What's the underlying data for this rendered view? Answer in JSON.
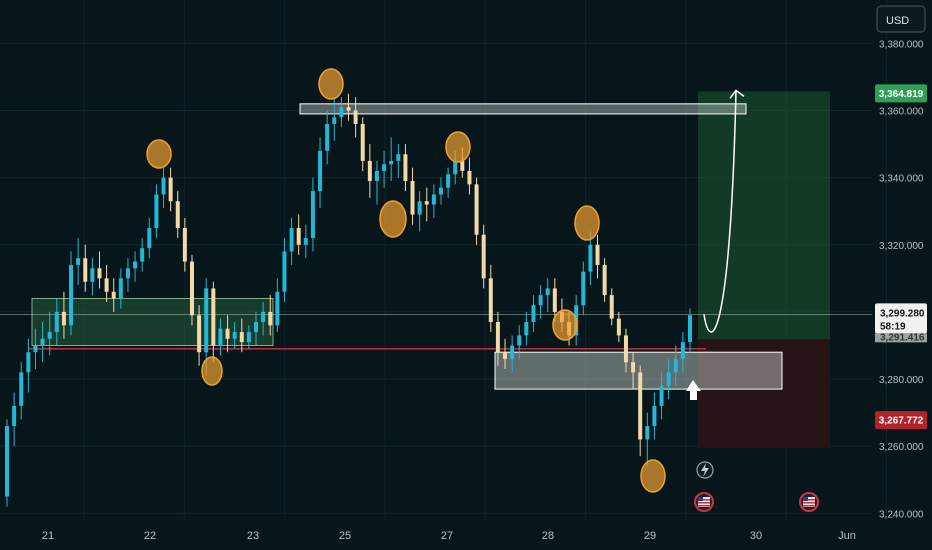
{
  "currency_button": "USD",
  "colors": {
    "background": "#07161a",
    "bull": "#22b8d6",
    "bear": "#f3d9a8",
    "pivot_circle": "#f0a030",
    "target_zone": "#1d5a30",
    "stop_zone": "#2a1417",
    "support_line": "#d0343c",
    "target_tag": "#2e9f55",
    "stop_tag": "#b0222c"
  },
  "tags": {
    "target": "3,364.819",
    "current_price": "3,299.280",
    "countdown": "58:19",
    "stop": "3,267.772",
    "hidden_partial": "3,291.416"
  },
  "chart_data": {
    "type": "candlestick",
    "y_axis": {
      "ticks": [
        "3,380.000",
        "3,360.000",
        "3,340.000",
        "3,320.000",
        "3,300.000",
        "3,280.000",
        "3,260.000",
        "3,240.000"
      ],
      "tick_values": [
        3380,
        3360,
        3340,
        3320,
        3300,
        3280,
        3260,
        3240
      ],
      "range": [
        3235,
        3390
      ]
    },
    "x_axis": {
      "labels": [
        "21",
        "22",
        "23",
        "25",
        "27",
        "28",
        "29",
        "30",
        "Jun"
      ],
      "label_index": [
        8,
        30,
        52,
        74,
        96,
        118,
        140,
        162,
        184
      ]
    },
    "price_levels": {
      "current": 3299.28,
      "target": 3364.819,
      "stop": 3267.772,
      "support": 3289
    },
    "candles": [
      [
        3245,
        3268,
        3242,
        3266
      ],
      [
        3266,
        3276,
        3260,
        3272
      ],
      [
        3272,
        3285,
        3268,
        3282
      ],
      [
        3282,
        3292,
        3276,
        3288
      ],
      [
        3288,
        3295,
        3283,
        3290
      ],
      [
        3290,
        3297,
        3285,
        3292
      ],
      [
        3292,
        3300,
        3287,
        3294
      ],
      [
        3294,
        3304,
        3290,
        3300
      ],
      [
        3300,
        3306,
        3292,
        3296
      ],
      [
        3296,
        3318,
        3293,
        3314
      ],
      [
        3314,
        3322,
        3308,
        3316
      ],
      [
        3316,
        3320,
        3306,
        3309
      ],
      [
        3309,
        3316,
        3305,
        3313
      ],
      [
        3313,
        3318,
        3307,
        3310
      ],
      [
        3310,
        3314,
        3303,
        3306
      ],
      [
        3306,
        3310,
        3300,
        3304
      ],
      [
        3304,
        3313,
        3301,
        3310
      ],
      [
        3310,
        3316,
        3306,
        3313
      ],
      [
        3313,
        3318,
        3309,
        3315
      ],
      [
        3315,
        3322,
        3312,
        3319
      ],
      [
        3319,
        3328,
        3316,
        3325
      ],
      [
        3325,
        3338,
        3322,
        3335
      ],
      [
        3335,
        3343,
        3331,
        3340
      ],
      [
        3340,
        3343,
        3330,
        3333
      ],
      [
        3333,
        3336,
        3322,
        3325
      ],
      [
        3325,
        3328,
        3312,
        3315
      ],
      [
        3315,
        3317,
        3296,
        3299
      ],
      [
        3299,
        3302,
        3284,
        3288
      ],
      [
        3288,
        3310,
        3281,
        3307
      ],
      [
        3307,
        3309,
        3285,
        3290
      ],
      [
        3290,
        3298,
        3287,
        3295
      ],
      [
        3295,
        3299,
        3288,
        3292
      ],
      [
        3292,
        3297,
        3289,
        3294
      ],
      [
        3294,
        3298,
        3288,
        3291
      ],
      [
        3291,
        3296,
        3289,
        3294
      ],
      [
        3294,
        3300,
        3290,
        3297
      ],
      [
        3297,
        3303,
        3293,
        3300
      ],
      [
        3300,
        3305,
        3293,
        3296
      ],
      [
        3296,
        3310,
        3294,
        3306
      ],
      [
        3306,
        3322,
        3303,
        3318
      ],
      [
        3318,
        3328,
        3314,
        3325
      ],
      [
        3325,
        3329,
        3317,
        3320
      ],
      [
        3320,
        3326,
        3316,
        3322
      ],
      [
        3322,
        3340,
        3318,
        3336
      ],
      [
        3336,
        3352,
        3331,
        3348
      ],
      [
        3348,
        3360,
        3344,
        3356
      ],
      [
        3356,
        3364,
        3351,
        3358
      ],
      [
        3358,
        3364,
        3355,
        3361
      ],
      [
        3361,
        3365,
        3357,
        3360
      ],
      [
        3360,
        3364,
        3352,
        3356
      ],
      [
        3356,
        3358,
        3342,
        3345
      ],
      [
        3345,
        3350,
        3334,
        3339
      ],
      [
        3339,
        3345,
        3332,
        3342
      ],
      [
        3342,
        3348,
        3337,
        3344
      ],
      [
        3344,
        3352,
        3339,
        3345
      ],
      [
        3345,
        3350,
        3340,
        3347
      ],
      [
        3347,
        3350,
        3336,
        3339
      ],
      [
        3339,
        3343,
        3326,
        3329
      ],
      [
        3329,
        3336,
        3324,
        3333
      ],
      [
        3333,
        3337,
        3327,
        3332
      ],
      [
        3332,
        3338,
        3328,
        3335
      ],
      [
        3335,
        3340,
        3332,
        3337
      ],
      [
        3337,
        3343,
        3334,
        3341
      ],
      [
        3341,
        3348,
        3338,
        3345
      ],
      [
        3345,
        3349,
        3340,
        3342
      ],
      [
        3342,
        3346,
        3335,
        3338
      ],
      [
        3338,
        3340,
        3320,
        3323
      ],
      [
        3323,
        3326,
        3307,
        3310
      ],
      [
        3310,
        3314,
        3294,
        3297
      ],
      [
        3297,
        3300,
        3284,
        3288
      ],
      [
        3288,
        3292,
        3283,
        3286
      ],
      [
        3286,
        3293,
        3282,
        3290
      ],
      [
        3290,
        3296,
        3286,
        3293
      ],
      [
        3293,
        3300,
        3290,
        3297
      ],
      [
        3297,
        3305,
        3294,
        3302
      ],
      [
        3302,
        3308,
        3298,
        3305
      ],
      [
        3305,
        3310,
        3300,
        3307
      ],
      [
        3307,
        3310,
        3297,
        3300
      ],
      [
        3300,
        3304,
        3294,
        3297
      ],
      [
        3297,
        3300,
        3290,
        3293
      ],
      [
        3293,
        3305,
        3290,
        3302
      ],
      [
        3302,
        3315,
        3299,
        3312
      ],
      [
        3312,
        3324,
        3308,
        3320
      ],
      [
        3320,
        3323,
        3310,
        3314
      ],
      [
        3314,
        3316,
        3303,
        3305
      ],
      [
        3305,
        3307,
        3296,
        3298
      ],
      [
        3298,
        3300,
        3291,
        3293
      ],
      [
        3293,
        3295,
        3282,
        3285
      ],
      [
        3285,
        3288,
        3277,
        3282
      ],
      [
        3282,
        3284,
        3257,
        3262
      ],
      [
        3262,
        3270,
        3254,
        3266
      ],
      [
        3266,
        3276,
        3262,
        3272
      ],
      [
        3272,
        3282,
        3268,
        3278
      ],
      [
        3278,
        3286,
        3274,
        3282
      ],
      [
        3282,
        3290,
        3278,
        3286
      ],
      [
        3286,
        3294,
        3282,
        3291
      ],
      [
        3291,
        3301,
        3288,
        3299
      ]
    ]
  },
  "labels": {
    "sessions_icon": "lightning-icon",
    "event_icon": "us-flag-icon"
  }
}
